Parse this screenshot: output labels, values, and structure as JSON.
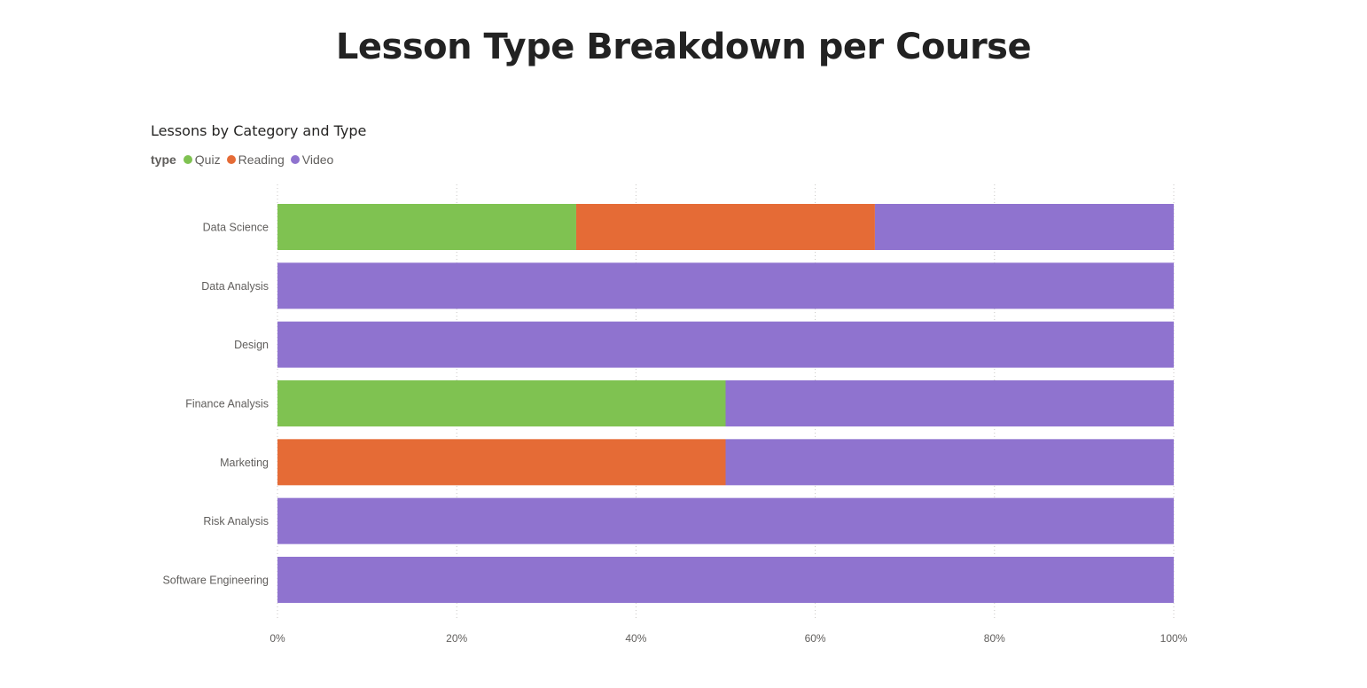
{
  "page": {
    "title": "Lesson Type Breakdown per Course"
  },
  "chart_data": {
    "type": "bar",
    "orientation": "horizontal",
    "stacking": "percent",
    "title": "Lessons by Category and Type",
    "legend": {
      "title": "type",
      "position": "top-left",
      "entries": [
        "Quiz",
        "Reading",
        "Video"
      ]
    },
    "categories": [
      "Data Science",
      "Data Analysis",
      "Design",
      "Finance Analysis",
      "Marketing",
      "Risk Analysis",
      "Software Engineering"
    ],
    "series": [
      {
        "name": "Quiz",
        "color": "#7fc251",
        "values": [
          33.33,
          0,
          0,
          50,
          0,
          0,
          0
        ]
      },
      {
        "name": "Reading",
        "color": "#e56b36",
        "values": [
          33.33,
          0,
          0,
          0,
          50,
          0,
          0
        ]
      },
      {
        "name": "Video",
        "color": "#8f73cf",
        "values": [
          33.34,
          100,
          100,
          50,
          50,
          100,
          100
        ]
      }
    ],
    "xlim": [
      0,
      100
    ],
    "x_ticks": [
      "0%",
      "20%",
      "40%",
      "60%",
      "80%",
      "100%"
    ],
    "grid": true,
    "grid_style": "dotted vertical"
  }
}
